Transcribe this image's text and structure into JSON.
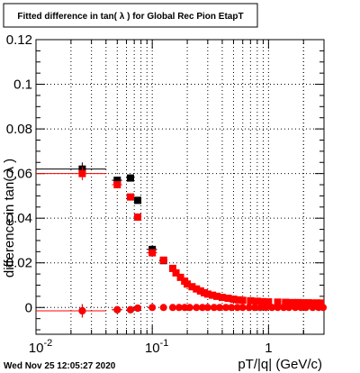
{
  "footer_timestamp": "Wed Nov 25 12:05:27 2020",
  "chart_data": {
    "type": "scatter",
    "title": "Fitted difference in tan( λ ) for Global Rec Pion EtapT",
    "xlabel": "pT/|q| (GeV/c)",
    "ylabel": "difference in tan( λ )",
    "xscale": "log",
    "xlim": [
      0.01,
      3.0
    ],
    "ylim": [
      -0.012,
      0.12
    ],
    "grid": true,
    "legend": "none",
    "x_ticks": [
      {
        "value": 0.01,
        "label": "10",
        "exp": "-2"
      },
      {
        "value": 0.1,
        "label": "10",
        "exp": "-1"
      },
      {
        "value": 1,
        "label": "1",
        "exp": ""
      }
    ],
    "y_ticks": [
      {
        "value": 0,
        "label": "0"
      },
      {
        "value": 0.02,
        "label": "0.02"
      },
      {
        "value": 0.04,
        "label": "0.04"
      },
      {
        "value": 0.06,
        "label": "0.06"
      },
      {
        "value": 0.08,
        "label": "0.08"
      },
      {
        "value": 0.1,
        "label": "0.1"
      },
      {
        "value": 0.12,
        "label": "0.12"
      }
    ],
    "series": [
      {
        "color": "#000000",
        "marker": "square",
        "points": [
          {
            "x": 0.025,
            "y": 0.062,
            "xlo": 0.01,
            "xhi": 0.04,
            "err": 0.003
          },
          {
            "x": 0.05,
            "y": 0.057,
            "xlo": 0.045,
            "xhi": 0.055,
            "err": 0.001
          },
          {
            "x": 0.065,
            "y": 0.058,
            "xlo": 0.06,
            "xhi": 0.07,
            "err": 0.001
          },
          {
            "x": 0.075,
            "y": 0.048,
            "xlo": 0.07,
            "xhi": 0.08,
            "err": 0.001
          },
          {
            "x": 0.1,
            "y": 0.026,
            "xlo": 0.09,
            "xhi": 0.11,
            "err": 0.001
          },
          {
            "x": 0.125,
            "y": 0.021,
            "xlo": 0.115,
            "xhi": 0.135,
            "err": 0.001
          }
        ]
      },
      {
        "color": "#000000",
        "marker": "circle",
        "points": [
          {
            "x": 0.025,
            "y": -0.0015,
            "xlo": 0.01,
            "xhi": 0.04,
            "err": 0.003
          },
          {
            "x": 0.05,
            "y": -0.001,
            "xlo": 0.045,
            "xhi": 0.055,
            "err": 0.001
          },
          {
            "x": 0.065,
            "y": -0.001,
            "xlo": 0.06,
            "xhi": 0.07,
            "err": 0.001
          },
          {
            "x": 0.075,
            "y": -0.0003,
            "xlo": 0.07,
            "xhi": 0.08,
            "err": 0.0005
          }
        ]
      },
      {
        "color": "#ff0000",
        "marker": "square",
        "points": [
          {
            "x": 0.025,
            "y": 0.06,
            "xlo": 0.01,
            "xhi": 0.04,
            "err": 0.003
          },
          {
            "x": 0.05,
            "y": 0.055,
            "xlo": 0.045,
            "xhi": 0.055,
            "err": 0.001
          },
          {
            "x": 0.065,
            "y": 0.0495,
            "xlo": 0.06,
            "xhi": 0.07,
            "err": 0.001
          },
          {
            "x": 0.075,
            "y": 0.0405,
            "xlo": 0.07,
            "xhi": 0.08,
            "err": 0.001
          },
          {
            "x": 0.1,
            "y": 0.0245,
            "xlo": 0.09,
            "xhi": 0.11,
            "err": 0.001
          },
          {
            "x": 0.125,
            "y": 0.0212,
            "xlo": 0.115,
            "xhi": 0.135,
            "err": 0.001
          },
          {
            "x": 0.15,
            "y": 0.0175
          },
          {
            "x": 0.16,
            "y": 0.0155
          },
          {
            "x": 0.175,
            "y": 0.0135
          },
          {
            "x": 0.19,
            "y": 0.0118
          },
          {
            "x": 0.2,
            "y": 0.0105
          },
          {
            "x": 0.22,
            "y": 0.0093
          },
          {
            "x": 0.24,
            "y": 0.0083
          },
          {
            "x": 0.26,
            "y": 0.0074
          },
          {
            "x": 0.28,
            "y": 0.0066
          },
          {
            "x": 0.3,
            "y": 0.006
          },
          {
            "x": 0.33,
            "y": 0.0055
          },
          {
            "x": 0.36,
            "y": 0.005
          },
          {
            "x": 0.4,
            "y": 0.0045
          },
          {
            "x": 0.45,
            "y": 0.0041
          },
          {
            "x": 0.5,
            "y": 0.0037
          },
          {
            "x": 0.55,
            "y": 0.0034
          },
          {
            "x": 0.6,
            "y": 0.0032
          },
          {
            "x": 0.7,
            "y": 0.003
          },
          {
            "x": 0.8,
            "y": 0.0028
          },
          {
            "x": 0.9,
            "y": 0.0026
          },
          {
            "x": 1.0,
            "y": 0.0025
          },
          {
            "x": 1.2,
            "y": 0.0024
          },
          {
            "x": 1.4,
            "y": 0.0023
          },
          {
            "x": 1.6,
            "y": 0.0022
          },
          {
            "x": 1.8,
            "y": 0.0022
          },
          {
            "x": 2.0,
            "y": 0.0021
          },
          {
            "x": 2.2,
            "y": 0.0021
          },
          {
            "x": 2.4,
            "y": 0.002
          },
          {
            "x": 2.6,
            "y": 0.002
          },
          {
            "x": 2.8,
            "y": 0.002
          }
        ]
      },
      {
        "color": "#ff0000",
        "marker": "circle",
        "points": [
          {
            "x": 0.025,
            "y": -0.0015,
            "xlo": 0.01,
            "xhi": 0.04,
            "err": 0.003
          },
          {
            "x": 0.05,
            "y": -0.001,
            "xlo": 0.045,
            "xhi": 0.055,
            "err": 0.001
          },
          {
            "x": 0.065,
            "y": -0.001,
            "xlo": 0.06,
            "xhi": 0.07,
            "err": 0.001
          },
          {
            "x": 0.075,
            "y": -0.0003
          },
          {
            "x": 0.1,
            "y": 0.0
          },
          {
            "x": 0.125,
            "y": 0.0
          },
          {
            "x": 0.15,
            "y": 0.0
          },
          {
            "x": 0.17,
            "y": 0.0
          },
          {
            "x": 0.19,
            "y": 0.0
          },
          {
            "x": 0.21,
            "y": 0.0
          },
          {
            "x": 0.24,
            "y": 0.0
          },
          {
            "x": 0.27,
            "y": 0.0
          },
          {
            "x": 0.3,
            "y": 0.0
          },
          {
            "x": 0.34,
            "y": 0.0
          },
          {
            "x": 0.38,
            "y": 0.0
          },
          {
            "x": 0.43,
            "y": 0.0
          },
          {
            "x": 0.48,
            "y": 0.0
          },
          {
            "x": 0.54,
            "y": 0.0
          },
          {
            "x": 0.6,
            "y": 0.0
          },
          {
            "x": 0.68,
            "y": 0.0
          },
          {
            "x": 0.76,
            "y": 0.0
          },
          {
            "x": 0.85,
            "y": 0.0
          },
          {
            "x": 0.95,
            "y": 0.0
          },
          {
            "x": 1.07,
            "y": 0.0
          },
          {
            "x": 1.2,
            "y": 0.0
          },
          {
            "x": 1.35,
            "y": 0.0
          },
          {
            "x": 1.5,
            "y": 0.0
          },
          {
            "x": 1.7,
            "y": 0.0
          },
          {
            "x": 1.9,
            "y": 0.0
          },
          {
            "x": 2.1,
            "y": 0.0
          },
          {
            "x": 2.4,
            "y": 0.0
          },
          {
            "x": 2.7,
            "y": 0.0
          },
          {
            "x": 2.95,
            "y": 0.0
          }
        ]
      }
    ]
  }
}
